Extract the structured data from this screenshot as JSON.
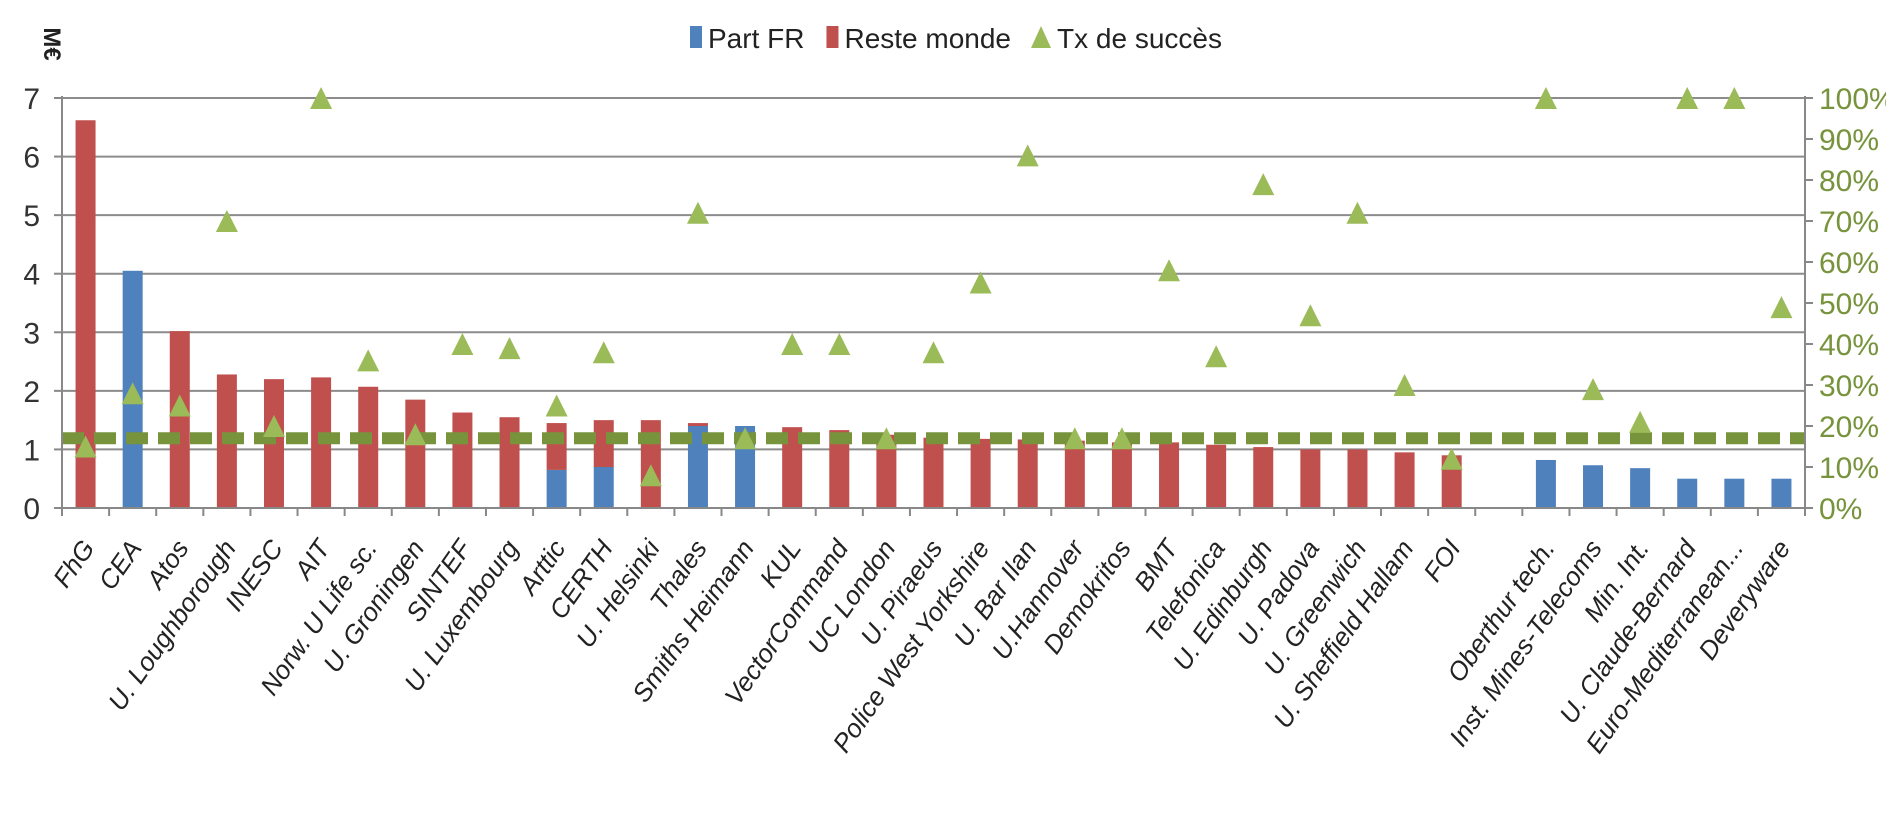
{
  "chart_data": {
    "type": "bar",
    "ylabel": "M€",
    "ylim": [
      0,
      7
    ],
    "y2lim": [
      0,
      100
    ],
    "y_ticks": [
      "0",
      "1",
      "2",
      "3",
      "4",
      "5",
      "6",
      "7"
    ],
    "y2_ticks": [
      "0%",
      "10%",
      "20%",
      "30%",
      "40%",
      "50%",
      "60%",
      "70%",
      "80%",
      "90%",
      "100%"
    ],
    "grid": true,
    "legend_position": "top",
    "reference_line": {
      "value": 17,
      "axis": "y2",
      "color": "#77933c",
      "style": "dashed"
    },
    "categories": [
      "FhG",
      "CEA",
      "Atos",
      "U. Loughborough",
      "INESC",
      "AIT",
      "Norw. U Life sc.",
      "U. Groningen",
      "SINTEF",
      "U. Luxembourg",
      "Arttic",
      "CERTH",
      "U. Helsinki",
      "Thales",
      "Smiths Heimann",
      "KUL",
      "VectorCommand",
      "UC London",
      "U. Piraeus",
      "Police West Yorkshire",
      "U. Bar Ilan",
      "U.Hannover",
      "Demokritos",
      "BMT",
      "Telefonica",
      "U. Edinburgh",
      "U. Padova",
      "U. Greenwich",
      "U. Sheffield Hallam",
      "FOI",
      "",
      "Oberthur tech.",
      "Inst. Mines-Telecoms",
      "Min. Int.",
      "U. Claude-Bernard",
      "Euro-Mediterranean...",
      "Deveryware"
    ],
    "series": [
      {
        "name": "Part FR",
        "kind": "bar",
        "color": "#4f81bd",
        "values": [
          0,
          4.05,
          0,
          0,
          0,
          0,
          0,
          0,
          0,
          0,
          0.65,
          0.7,
          0,
          1.4,
          1.4,
          0,
          0,
          0,
          0,
          0,
          0,
          0,
          0,
          0,
          0,
          0,
          0,
          0,
          0,
          0,
          0,
          0.82,
          0.73,
          0.68,
          0.5,
          0.5,
          0.5
        ]
      },
      {
        "name": "Reste monde",
        "kind": "bar",
        "color": "#c0504d",
        "values": [
          6.62,
          0,
          3.02,
          2.28,
          2.2,
          2.23,
          2.07,
          1.85,
          1.63,
          1.55,
          0.8,
          0.8,
          1.5,
          0.05,
          0,
          1.38,
          1.33,
          1.25,
          1.2,
          1.18,
          1.17,
          1.15,
          1.12,
          1.12,
          1.08,
          1.04,
          1.0,
          1.0,
          0.95,
          0.9,
          0,
          0,
          0,
          0,
          0,
          0,
          0
        ]
      },
      {
        "name": "Tx de succès",
        "kind": "scatter",
        "axis": "y2",
        "color": "#9bbb59",
        "values": [
          15,
          28,
          25,
          70,
          20,
          100,
          36,
          18,
          40,
          39,
          25,
          38,
          8,
          72,
          17,
          40,
          40,
          17,
          38,
          55,
          86,
          17,
          17,
          58,
          37,
          79,
          47,
          72,
          30,
          12,
          null,
          100,
          29,
          21,
          100,
          100,
          49
        ]
      }
    ]
  }
}
